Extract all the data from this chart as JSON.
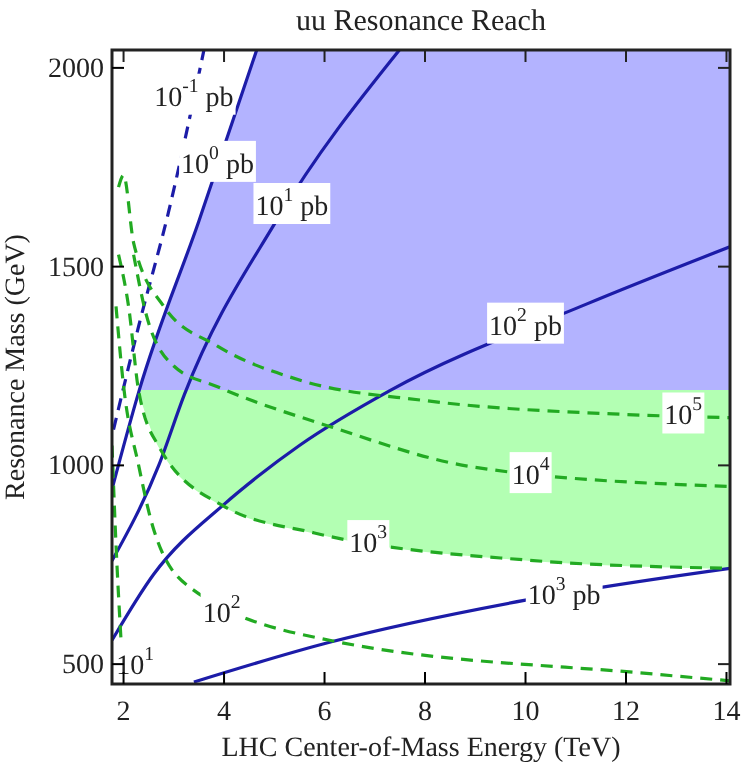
{
  "chart_data": {
    "type": "line",
    "title": "uu Resonance Reach",
    "xlabel": "LHC Center-of-Mass Energy (TeV)",
    "ylabel": "Resonance Mass (GeV)",
    "xlim": [
      1.77,
      14.07
    ],
    "ylim": [
      450,
      2045
    ],
    "xticks": [
      2,
      4,
      6,
      8,
      10,
      12,
      14
    ],
    "yticks": [
      500,
      1000,
      1500,
      2000
    ],
    "grid": false,
    "series": [
      {
        "color": "#1c1ca8",
        "line_style": "dashed",
        "x": [
          1.8,
          2.3,
          2.9,
          3.6
        ],
        "values": [
          1090,
          1350,
          1640,
          2045
        ]
      },
      {
        "color": "#1c1ca8",
        "line_style": "solid",
        "x": [
          1.77,
          2.31,
          3.5,
          4.65
        ],
        "values": [
          940,
          1188,
          1615,
          2045
        ],
        "lower": [
          null,
          1188,
          1188,
          1188
        ],
        "upper": [
          null,
          1188,
          1615,
          2045
        ]
      },
      {
        "color": "#1c1ca8",
        "line_style": "solid",
        "x": [
          1.77,
          2.7,
          3.21,
          5.04,
          7.49
        ],
        "values": [
          760,
          1000,
          1178,
          1615,
          2045
        ]
      },
      {
        "color": "#1c1ca8",
        "line_style": "solid",
        "x": [
          1.77,
          2.6,
          4.0,
          4.65,
          5.5,
          7.3,
          11.2,
          14.07
        ],
        "values": [
          560,
          726,
          902,
          970,
          1050,
          1188,
          1405,
          1550
        ],
        "lower": [
          null,
          null,
          null,
          1188,
          1188,
          1188,
          1188,
          1188
        ],
        "upper": [
          null,
          null,
          null,
          2045,
          2045,
          2045,
          2045,
          2045
        ]
      },
      {
        "color": "#1c1ca8",
        "line_style": "solid",
        "x": [
          3.4,
          6.1,
          10,
          14.07
        ],
        "values": [
          455,
          555,
          661,
          741
        ]
      },
      {
        "color": "#22aa22",
        "line_style": "dashed",
        "x": [
          1.77,
          1.85,
          1.95
        ],
        "values": [
          1050,
          800,
          560
        ]
      },
      {
        "color": "#22aa22",
        "line_style": "dashed",
        "x": [
          1.85,
          2.0,
          2.3,
          2.58,
          3.3,
          6.1,
          12.56,
          14.07
        ],
        "values": [
          1400,
          1200,
          1000,
          847,
          695,
          560,
          475,
          458
        ]
      },
      {
        "color": "#22aa22",
        "line_style": "dashed",
        "x": [
          1.9,
          2.1,
          2.3,
          2.7,
          4,
          5.8,
          10,
          14.07
        ],
        "values": [
          1530,
          1400,
          1188,
          1048,
          897,
          830,
          762,
          741
        ],
        "lower": [
          null,
          null,
          1188,
          1048,
          897,
          830,
          762,
          741
        ],
        "upper": [
          null,
          null,
          1188,
          1188,
          1188,
          1188,
          1188,
          1188
        ]
      },
      {
        "color": "#22aa22",
        "line_style": "dashed",
        "x": [
          2.2,
          2.45,
          3.0,
          3.87,
          6.1,
          9.0,
          14.07
        ],
        "values": [
          1530,
          1380,
          1250,
          1198,
          1098,
          995,
          947
        ]
      },
      {
        "color": "#22aa22",
        "line_style": "dashed",
        "x": [
          1.9,
          2.0,
          2.2,
          2.8,
          3.87,
          5.55,
          8,
          12.0,
          14.07
        ],
        "values": [
          1700,
          1730,
          1560,
          1400,
          1300,
          1213,
          1163,
          1128,
          1120
        ]
      }
    ],
    "annotations": [
      {
        "text": "10$^{-1}$ pb",
        "x": 3.4,
        "y": 1925
      },
      {
        "text": "10$^{0}$ pb",
        "x": 3.87,
        "y": 1756
      },
      {
        "text": "10$^{1}$ pb",
        "x": 5.35,
        "y": 1650
      },
      {
        "text": "10$^{2}$ pb",
        "x": 10.0,
        "y": 1349
      },
      {
        "text": "10$^{3}$ pb",
        "x": 10.77,
        "y": 671
      },
      {
        "text": "10$^{5}$",
        "x": 13.14,
        "y": 1123
      },
      {
        "text": "10$^{4}$",
        "x": 10.1,
        "y": 973
      },
      {
        "text": "10$^{3}$",
        "x": 6.87,
        "y": 802
      },
      {
        "text": "10$^{2}$",
        "x": 3.95,
        "y": 626
      },
      {
        "text": "10$^{1}$",
        "x": 2.23,
        "y": 495
      }
    ]
  }
}
